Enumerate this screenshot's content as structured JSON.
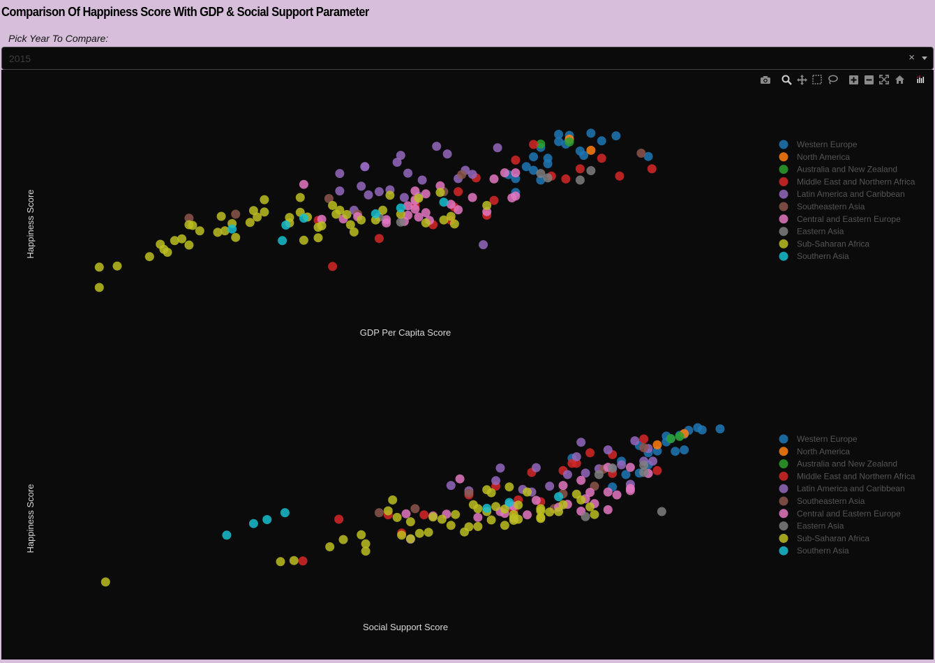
{
  "header": {
    "title": "Comparison Of Happiness Score With GDP & Social Support Parameter",
    "pick_label": "Pick Year To Compare:"
  },
  "year_select": {
    "value": "2015",
    "clear_symbol": "×"
  },
  "modebar": [
    "camera-icon",
    "zoom-icon",
    "pan-icon",
    "box-select-icon",
    "lasso-icon",
    "zoom-in-icon",
    "zoom-out-icon",
    "autoscale-icon",
    "reset-axes-icon",
    "plotly-logo-icon"
  ],
  "colors": {
    "Western Europe": "#1f77b4",
    "North America": "#ff7f0e",
    "Australia and New Zealand": "#2ca02c",
    "Middle East and Northern Africa": "#d62728",
    "Latin America and Caribbean": "#9467bd",
    "Southeastern Asia": "#8c564b",
    "Central and Eastern Europe": "#e377c2",
    "Eastern Asia": "#7f7f7f",
    "Sub-Saharan Africa": "#bcbd22",
    "Southern Asia": "#17becf"
  },
  "chart_data": [
    {
      "type": "scatter",
      "xlabel": "GDP Per Capita Score",
      "ylabel": "Happiness Score",
      "xlim": [
        0,
        1.75
      ],
      "ylim": [
        2.8,
        7.8
      ],
      "legend_position": "right",
      "legend": [
        "Western Europe",
        "North America",
        "Australia and New Zealand",
        "Middle East and Northern Africa",
        "Latin America and Caribbean",
        "Southeastern Asia",
        "Central and Eastern Europe",
        "Eastern Asia",
        "Sub-Saharan Africa",
        "Southern Asia"
      ],
      "series": [
        {
          "name": "Western Europe",
          "x": [
            1.39,
            1.3,
            1.33,
            1.46,
            1.33,
            1.42,
            1.3,
            1.32,
            1.25,
            1.23,
            1.27,
            1.55,
            1.37,
            1.21,
            1.18,
            1.25,
            1.16,
            1.23,
            1.36,
            1.27,
            1.18
          ],
          "y": [
            7.59,
            7.56,
            7.53,
            7.52,
            7.41,
            7.38,
            7.36,
            7.29,
            7.2,
            6.94,
            6.9,
            6.95,
            6.98,
            6.67,
            6.34,
            6.3,
            6.45,
            6.57,
            7.1,
            6.75,
            5.96
          ]
        },
        {
          "name": "North America",
          "x": [
            1.33,
            1.39
          ],
          "y": [
            7.43,
            7.12
          ]
        },
        {
          "name": "Australia and New Zealand",
          "x": [
            1.33,
            1.25
          ],
          "y": [
            7.35,
            7.29
          ]
        },
        {
          "name": "Middle East and Northern Africa",
          "x": [
            1.23,
            1.42,
            1.36,
            1.28,
            1.32,
            1.56,
            1.47,
            1.18,
            1.07,
            1.02,
            1.12,
            0.9,
            1.01,
            1.1,
            1.0,
            0.95,
            0.63,
            0.8,
            0.67
          ],
          "y": [
            7.28,
            6.9,
            6.61,
            6.41,
            6.33,
            6.61,
            6.41,
            6.85,
            6.36,
            5.98,
            5.74,
            5.6,
            5.55,
            5.33,
            5.19,
            5.07,
            5.19,
            4.69,
            3.92
          ]
        },
        {
          "name": "Latin America and Caribbean",
          "x": [
            0.96,
            1.13,
            0.99,
            0.86,
            0.85,
            0.76,
            0.76,
            1.04,
            0.88,
            0.69,
            1.06,
            0.92,
            1.02,
            0.75,
            0.69,
            0.77,
            0.91,
            0.87,
            0.73,
            1.09,
            0.8,
            0.83
          ],
          "y": [
            7.23,
            7.19,
            7.02,
            6.98,
            6.79,
            6.67,
            6.67,
            6.57,
            6.49,
            6.48,
            6.46,
            6.3,
            6.34,
            6.13,
            6.0,
            5.89,
            5.85,
            5.82,
            5.47,
            4.52,
            5.98,
            6.03
          ]
        },
        {
          "name": "Southeastern Asia",
          "x": [
            1.53,
            1.03,
            0.9,
            0.74,
            0.4,
            0.27,
            0.66,
            0.98
          ],
          "y": [
            7.04,
            6.45,
            5.77,
            5.36,
            5.36,
            5.25,
            5.79,
            5.98
          ]
        },
        {
          "name": "Central and Eastern Europe",
          "x": [
            1.18,
            1.15,
            1.12,
            0.97,
            0.9,
            1.18,
            1.17,
            0.88,
            1.02,
            1.1,
            0.93,
            0.88,
            0.74,
            0.91,
            0.82,
            0.82,
            0.87,
            0.59,
            0.94,
            1.06,
            0.9,
            0.93,
            1.0,
            0.64,
            0.7,
            0.9
          ],
          "y": [
            6.5,
            6.5,
            6.33,
            6.14,
            6.0,
            5.86,
            5.81,
            5.59,
            5.48,
            5.43,
            5.4,
            5.33,
            5.29,
            5.28,
            5.21,
            5.12,
            5.16,
            6.18,
            5.19,
            5.82,
            5.74,
            5.92,
            5.63,
            5.22,
            5.23,
            5.5
          ]
        },
        {
          "name": "Eastern Asia",
          "x": [
            1.39,
            1.36,
            1.25,
            1.27,
            0.86,
            0.8
          ],
          "y": [
            6.56,
            6.3,
            6.48,
            6.36,
            5.14,
            5.28
          ]
        },
        {
          "name": "Sub-Saharan Africa",
          "x": [
            1.1,
            0.98,
            1.01,
            0.97,
            0.91,
            0.83,
            0.73,
            0.72,
            0.68,
            0.6,
            0.55,
            0.45,
            0.46,
            0.35,
            0.3,
            0.27,
            0.25,
            0.23,
            0.19,
            0.2,
            0.21,
            0.16,
            0.07,
            0.02,
            0.02,
            0.48,
            0.39,
            0.36,
            0.28,
            0.58,
            0.63,
            0.63,
            0.55,
            0.67,
            0.44,
            0.75,
            0.37,
            0.4,
            0.81,
            0.93,
            1.0,
            0.59,
            0.64,
            0.86,
            0.79,
            0.58,
            0.48,
            0.71,
            0.69,
            0.27
          ],
          "y": [
            5.6,
            5.2,
            5.09,
            5.96,
            5.8,
            5.88,
            4.87,
            5.07,
            5.36,
            5.28,
            5.27,
            5.46,
            5.28,
            4.86,
            4.9,
            5.07,
            4.68,
            4.63,
            4.53,
            4.39,
            4.31,
            4.19,
            3.93,
            3.9,
            3.34,
            5.42,
            5.1,
            5.3,
            5.05,
            5.82,
            4.71,
            5.0,
            5.12,
            5.6,
            5.13,
            5.2,
            4.9,
            4.72,
            5.47,
            5.12,
            5.3,
            4.64,
            5.04,
            5.36,
            5.2,
            5.41,
            5.76,
            5.35,
            5.47,
            4.51
          ]
        },
        {
          "name": "Southern Asia",
          "x": [
            0.98,
            0.86,
            0.59,
            0.54,
            0.39,
            0.53,
            0.79
          ],
          "y": [
            5.69,
            5.53,
            5.25,
            5.06,
            4.95,
            4.63,
            5.37
          ]
        }
      ]
    },
    {
      "type": "scatter",
      "xlabel": "Social Support Score",
      "ylabel": "Happiness Score",
      "xlim": [
        0,
        1.4
      ],
      "ylim": [
        2.8,
        7.8
      ],
      "legend_position": "right",
      "legend": [
        "Western Europe",
        "North America",
        "Australia and New Zealand",
        "Middle East and Northern Africa",
        "Latin America and Caribbean",
        "Southeastern Asia",
        "Central and Eastern Europe",
        "Eastern Asia",
        "Sub-Saharan Africa",
        "Southern Asia"
      ],
      "series": [
        {
          "name": "Western Europe",
          "x": [
            1.35,
            1.4,
            1.36,
            1.33,
            1.32,
            1.31,
            1.28,
            1.29,
            1.28,
            1.3,
            1.24,
            1.26,
            1.32,
            1.18,
            1.22,
            1.19,
            1.16,
            1.24,
            1.22,
            1.07,
            1.16
          ],
          "y": [
            7.59,
            7.56,
            7.53,
            7.52,
            7.41,
            7.38,
            7.36,
            7.29,
            7.2,
            6.94,
            6.9,
            6.95,
            6.98,
            6.67,
            6.34,
            6.3,
            6.45,
            6.57,
            7.1,
            6.75,
            5.96
          ]
        },
        {
          "name": "North America",
          "x": [
            1.32,
            1.26
          ],
          "y": [
            7.43,
            7.12
          ]
        },
        {
          "name": "Australia and New Zealand",
          "x": [
            1.31,
            1.29
          ],
          "y": [
            7.35,
            7.29
          ]
        },
        {
          "name": "Middle East and Northern Africa",
          "x": [
            1.23,
            1.11,
            1.07,
            1.26,
            1.16,
            1.08,
            1.05,
            1.16,
            0.98,
            0.9,
            0.84,
            0.95,
            1.0,
            0.94,
            0.66,
            0.55,
            0.74,
            0.69,
            0.47
          ],
          "y": [
            7.28,
            6.9,
            6.61,
            6.41,
            6.33,
            6.61,
            6.41,
            6.85,
            6.36,
            5.98,
            5.74,
            5.6,
            5.55,
            5.33,
            5.19,
            5.07,
            5.19,
            4.69,
            3.92
          ]
        },
        {
          "name": "Latin America and Caribbean",
          "x": [
            1.21,
            1.09,
            1.24,
            1.15,
            1.08,
            1.23,
            1.25,
            1.18,
            0.99,
            0.91,
            1.13,
            1.06,
            1.1,
            0.9,
            0.8,
            0.96,
            0.84,
            0.98,
            0.93,
            0.71,
            1.02,
            1.2
          ],
          "y": [
            7.23,
            7.19,
            7.02,
            6.98,
            6.79,
            6.67,
            6.67,
            6.57,
            6.49,
            6.48,
            6.46,
            6.3,
            6.34,
            6.13,
            6.0,
            5.89,
            5.85,
            5.82,
            5.47,
            4.52,
            5.98,
            6.03
          ]
        },
        {
          "name": "Southeastern Asia",
          "x": [
            1.23,
            1.14,
            1.05,
            1.03,
            0.72,
            0.64,
            0.84,
            1.12
          ],
          "y": [
            7.04,
            6.45,
            5.77,
            5.36,
            5.36,
            5.25,
            5.79,
            5.98
          ]
        },
        {
          "name": "Central and Eastern Europe",
          "x": [
            1.2,
            1.15,
            1.24,
            1.09,
            1.05,
            1.2,
            1.11,
            0.99,
            1.06,
            0.94,
            1.04,
            1.15,
            1.09,
            0.91,
            0.79,
            0.86,
            0.76,
            0.82,
            0.97,
            1.15,
            1.17,
            1.2,
            1.1,
            0.7,
            0.92,
            1.12
          ],
          "y": [
            6.5,
            6.5,
            6.33,
            6.14,
            6.0,
            5.86,
            5.81,
            5.59,
            5.48,
            5.43,
            5.4,
            5.33,
            5.29,
            5.28,
            5.21,
            5.12,
            5.16,
            6.18,
            5.19,
            5.82,
            5.74,
            5.92,
            5.63,
            5.22,
            5.23,
            5.5
          ]
        },
        {
          "name": "Eastern Asia",
          "x": [
            1.23,
            1.13,
            1.16,
            1.23,
            1.1,
            1.27
          ],
          "y": [
            6.56,
            6.3,
            6.48,
            6.36,
            5.14,
            5.28
          ]
        },
        {
          "name": "Sub-Saharan Africa",
          "x": [
            1.09,
            1.12,
            1.0,
            0.93,
            0.89,
            0.88,
            0.86,
            0.95,
            0.86,
            1.04,
            1.02,
            0.95,
            0.88,
            0.84,
            0.8,
            0.78,
            0.73,
            0.69,
            0.71,
            0.61,
            0.53,
            0.61,
            0.45,
            0.42,
            0.03,
            0.9,
            0.94,
            1.0,
            0.89,
            0.97,
            0.75,
            0.71,
            0.68,
            0.67,
            0.76,
            0.81,
            0.92,
            0.83,
            1.05,
            1.0,
            0.66,
            0.6,
            0.94,
            1.0,
            0.94,
            1.11,
            1.08,
            0.92,
            0.85,
            0.56
          ],
          "y": [
            5.6,
            5.2,
            5.09,
            5.96,
            5.8,
            5.88,
            4.87,
            5.07,
            5.36,
            5.28,
            5.27,
            5.46,
            5.28,
            4.86,
            4.9,
            5.07,
            4.68,
            4.63,
            4.53,
            4.39,
            4.31,
            4.19,
            3.93,
            3.9,
            3.34,
            5.42,
            5.1,
            5.3,
            5.05,
            5.82,
            4.71,
            5.0,
            5.12,
            5.6,
            5.13,
            5.2,
            4.9,
            4.72,
            5.47,
            5.12,
            5.3,
            4.64,
            5.04,
            5.36,
            5.2,
            5.41,
            5.76,
            5.35,
            5.47,
            4.51
          ]
        },
        {
          "name": "Southern Asia",
          "x": [
            1.04,
            0.93,
            0.43,
            0.39,
            0.36,
            0.3,
            0.88
          ],
          "y": [
            5.69,
            5.53,
            5.25,
            5.06,
            4.95,
            4.63,
            5.37
          ]
        }
      ]
    }
  ]
}
